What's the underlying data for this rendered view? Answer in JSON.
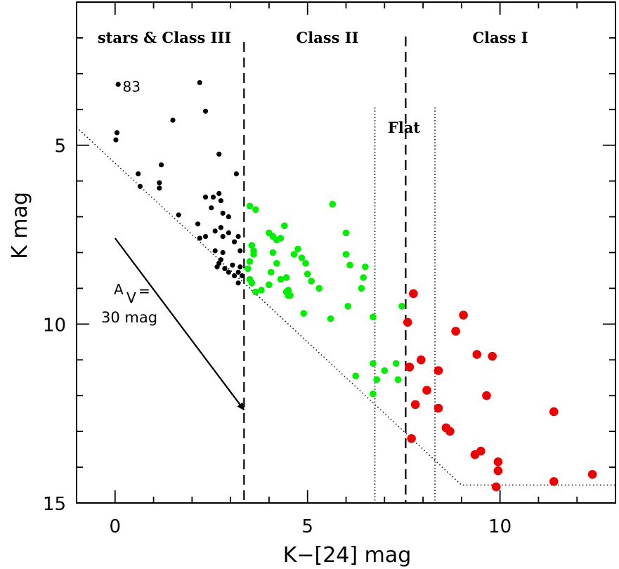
{
  "chart_data": {
    "type": "scatter",
    "xlabel": "K−[24] mag",
    "ylabel": "K mag",
    "xlim": [
      -1,
      13
    ],
    "ylim": [
      15,
      1
    ],
    "x_ticks": [
      0,
      5,
      10
    ],
    "y_ticks": [
      5,
      10,
      15
    ],
    "region_labels": [
      "stars & Class III",
      "Class II",
      "Class I"
    ],
    "flat_label": "Flat",
    "boundaries": {
      "class_iii_ii": 3.35,
      "class_ii_i": 7.55,
      "flat_lower": 6.75,
      "flat_upper": 8.31
    },
    "point_label": {
      "text": "83",
      "x": 0.05,
      "y": 3.35
    },
    "extinction_vector": {
      "label_prefix": "A",
      "label_sub": "V",
      "label_suffix": "=",
      "label_line2": "30 mag",
      "from": [
        0,
        7.6
      ],
      "to": [
        3.35,
        12.4
      ]
    },
    "completeness_limit": {
      "points": [
        [
          -1,
          4.5
        ],
        [
          9.0,
          14.5
        ],
        [
          13,
          14.5
        ]
      ]
    },
    "colors": {
      "class_iii": "#000000",
      "class_ii": "#00ee00",
      "class_i": "#ee0000"
    },
    "series": [
      {
        "name": "stars & Class III",
        "color": "#000000",
        "points": [
          [
            0.08,
            3.3
          ],
          [
            0.05,
            4.65
          ],
          [
            0.02,
            4.85
          ],
          [
            0.6,
            5.8
          ],
          [
            0.65,
            6.15
          ],
          [
            1.2,
            5.55
          ],
          [
            1.15,
            6.05
          ],
          [
            1.15,
            6.2
          ],
          [
            1.5,
            4.3
          ],
          [
            1.65,
            6.95
          ],
          [
            2.2,
            3.25
          ],
          [
            2.35,
            4.05
          ],
          [
            2.35,
            6.45
          ],
          [
            2.15,
            7.2
          ],
          [
            2.2,
            7.6
          ],
          [
            2.35,
            7.55
          ],
          [
            2.55,
            6.45
          ],
          [
            2.5,
            6.75
          ],
          [
            2.6,
            7.4
          ],
          [
            2.7,
            5.25
          ],
          [
            2.7,
            6.35
          ],
          [
            2.75,
            6.55
          ],
          [
            2.8,
            6.9
          ],
          [
            2.75,
            7.3
          ],
          [
            2.8,
            7.55
          ],
          [
            2.6,
            7.95
          ],
          [
            2.65,
            8.4
          ],
          [
            2.75,
            8.2
          ],
          [
            2.8,
            8.0
          ],
          [
            2.85,
            8.45
          ],
          [
            2.95,
            7.0
          ],
          [
            2.95,
            7.45
          ],
          [
            3.05,
            8.35
          ],
          [
            3.1,
            8.65
          ],
          [
            3.2,
            8.55
          ],
          [
            3.1,
            7.7
          ],
          [
            3.2,
            7.55
          ],
          [
            3.25,
            8.4
          ],
          [
            3.2,
            8.85
          ],
          [
            3.3,
            8.65
          ],
          [
            3.25,
            7.95
          ],
          [
            3.15,
            5.8
          ],
          [
            2.95,
            8.55
          ],
          [
            2.7,
            8.3
          ]
        ]
      },
      {
        "name": "Class II",
        "color": "#00ee00",
        "points": [
          [
            3.5,
            6.7
          ],
          [
            3.65,
            6.8
          ],
          [
            3.55,
            7.8
          ],
          [
            3.6,
            8.05
          ],
          [
            3.5,
            8.25
          ],
          [
            3.45,
            8.45
          ],
          [
            3.5,
            8.75
          ],
          [
            3.55,
            8.85
          ],
          [
            3.65,
            9.1
          ],
          [
            3.8,
            9.05
          ],
          [
            3.6,
            7.95
          ],
          [
            4.0,
            7.45
          ],
          [
            4.1,
            7.55
          ],
          [
            4.2,
            7.65
          ],
          [
            4.3,
            7.6
          ],
          [
            4.4,
            7.25
          ],
          [
            4.1,
            8.0
          ],
          [
            4.05,
            8.55
          ],
          [
            4.2,
            8.3
          ],
          [
            4.3,
            8.75
          ],
          [
            4.45,
            8.7
          ],
          [
            4.0,
            8.9
          ],
          [
            4.45,
            9.1
          ],
          [
            4.55,
            9.2
          ],
          [
            4.75,
            7.9
          ],
          [
            4.65,
            8.05
          ],
          [
            4.85,
            8.15
          ],
          [
            4.95,
            8.3
          ],
          [
            5.0,
            8.6
          ],
          [
            5.1,
            8.8
          ],
          [
            5.3,
            9.0
          ],
          [
            4.5,
            9.05
          ],
          [
            4.9,
            9.7
          ],
          [
            5.65,
            6.65
          ],
          [
            6.0,
            7.45
          ],
          [
            6.0,
            8.05
          ],
          [
            6.1,
            8.35
          ],
          [
            6.5,
            8.4
          ],
          [
            6.45,
            8.7
          ],
          [
            6.4,
            9.0
          ],
          [
            5.6,
            9.85
          ],
          [
            6.05,
            9.5
          ],
          [
            6.7,
            9.8
          ],
          [
            7.45,
            9.5
          ],
          [
            6.7,
            11.1
          ],
          [
            7.0,
            11.3
          ],
          [
            7.3,
            11.1
          ],
          [
            7.35,
            11.55
          ],
          [
            6.8,
            11.55
          ],
          [
            6.25,
            11.45
          ],
          [
            6.7,
            11.95
          ],
          [
            4.5,
            9.2
          ]
        ]
      },
      {
        "name": "Class I",
        "color": "#ee0000",
        "points": [
          [
            7.75,
            9.15
          ],
          [
            7.6,
            9.95
          ],
          [
            7.65,
            11.2
          ],
          [
            7.95,
            11.0
          ],
          [
            8.4,
            11.3
          ],
          [
            8.1,
            11.85
          ],
          [
            7.8,
            12.25
          ],
          [
            8.4,
            12.35
          ],
          [
            7.7,
            13.2
          ],
          [
            8.6,
            12.9
          ],
          [
            8.7,
            13.0
          ],
          [
            8.85,
            10.2
          ],
          [
            9.05,
            9.75
          ],
          [
            9.4,
            10.85
          ],
          [
            9.8,
            10.9
          ],
          [
            9.65,
            12.0
          ],
          [
            9.5,
            13.55
          ],
          [
            9.35,
            13.65
          ],
          [
            9.95,
            13.85
          ],
          [
            9.95,
            14.1
          ],
          [
            9.9,
            14.55
          ],
          [
            11.4,
            12.45
          ],
          [
            11.4,
            14.4
          ],
          [
            12.4,
            14.2
          ]
        ]
      }
    ]
  }
}
